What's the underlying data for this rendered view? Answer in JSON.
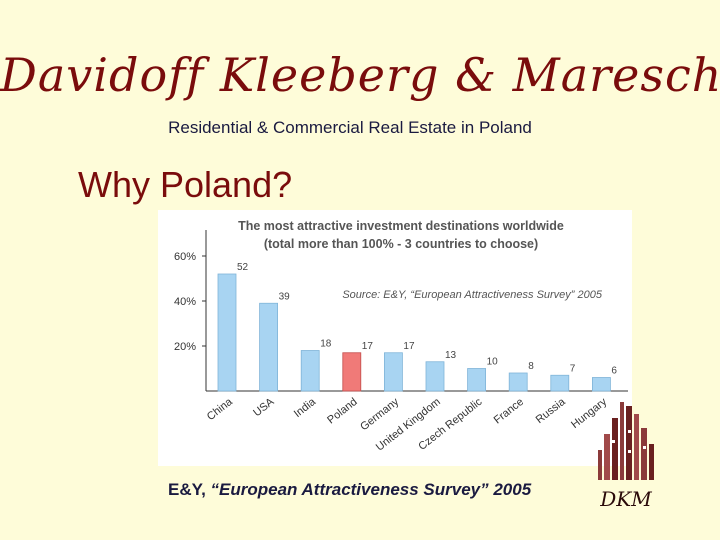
{
  "slide": {
    "brand_title": "Davidoff Kleeberg & Maresch",
    "tagline": "Residential & Commercial Real Estate in Poland",
    "heading": "Why Poland?",
    "footer_source": "E&Y, ",
    "footer_survey": "“European Attractiveness Survey” 2005",
    "logo_text": "DKM"
  },
  "colors": {
    "brand": "#7a0c0c",
    "background": "#fefcd9",
    "bar": "#a8d4f2",
    "highlight": "#f07a78"
  },
  "chart_data": {
    "type": "bar",
    "title_line1": "The most attractive investment destinations worldwide",
    "title_line2": "(total more than 100% - 3 countries to choose)",
    "source_note": "Source: E&Y, “European Attractiveness Survey” 2005",
    "categories": [
      "China",
      "USA",
      "India",
      "Poland",
      "Germany",
      "United Kingdom",
      "Czech Republic",
      "France",
      "Russia",
      "Hungary"
    ],
    "values": [
      52,
      39,
      18,
      17,
      17,
      13,
      10,
      8,
      7,
      6
    ],
    "highlight": "Poland",
    "y_ticks": [
      "20%",
      "40%",
      "60%"
    ],
    "y_tick_values": [
      20,
      40,
      60
    ],
    "ylim": [
      0,
      60
    ],
    "grid": false,
    "legend": "none"
  }
}
